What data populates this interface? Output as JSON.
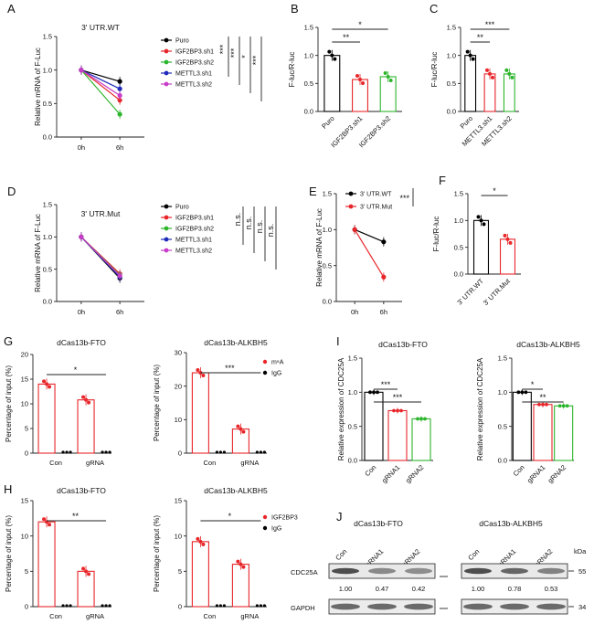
{
  "panels": {
    "A": {
      "letter": "A",
      "title": "3' UTR.WT",
      "ylabel": "Relative mRNA of F-Luc",
      "x": [
        "0h",
        "6h"
      ],
      "yticks": [
        "0.0",
        "0.5",
        "1.0",
        "1.5"
      ],
      "series": [
        {
          "name": "Puro",
          "color": "#000000",
          "values": [
            1.0,
            0.83
          ]
        },
        {
          "name": "IGF2BP3.sh1",
          "color": "#e8262a",
          "values": [
            1.0,
            0.55
          ]
        },
        {
          "name": "IGF2BP3.sh2",
          "color": "#2db52d",
          "values": [
            1.0,
            0.34
          ]
        },
        {
          "name": "METTL3.sh1",
          "color": "#1f2bb8",
          "values": [
            1.0,
            0.72
          ]
        },
        {
          "name": "METTL3.sh2",
          "color": "#c83cc8",
          "values": [
            1.0,
            0.62
          ]
        }
      ],
      "sig": [
        "***",
        "***",
        "*",
        "***"
      ]
    },
    "B": {
      "letter": "B",
      "ylabel": "F-luc/R-luc",
      "categories": [
        "Puro",
        "IGF2BP3.sh1",
        "IGF2BP3.sh2"
      ],
      "colors": [
        "#000000",
        "#e8262a",
        "#2db52d"
      ],
      "values": [
        1.0,
        0.57,
        0.62
      ],
      "yticks": [
        "0.0",
        "0.5",
        "1.0",
        "1.5"
      ],
      "sig": [
        "*",
        "**"
      ]
    },
    "C": {
      "letter": "C",
      "ylabel": "F-luc/R-luc",
      "categories": [
        "Puro",
        "METTL3.sh1",
        "METTL3.sh2"
      ],
      "colors": [
        "#000000",
        "#e8262a",
        "#2db52d"
      ],
      "values": [
        1.0,
        0.67,
        0.67
      ],
      "yticks": [
        "0.0",
        "0.5",
        "1.0",
        "1.5"
      ],
      "sig": [
        "***",
        "**"
      ]
    },
    "D": {
      "letter": "D",
      "title": "3' UTR.Mut",
      "ylabel": "Relative mRNA of F-Luc",
      "x": [
        "0h",
        "6h"
      ],
      "yticks": [
        "0.0",
        "0.5",
        "1.0",
        "1.5"
      ],
      "series": [
        {
          "name": "Puro",
          "color": "#000000",
          "values": [
            1.0,
            0.36
          ]
        },
        {
          "name": "IGF2BP3.sh1",
          "color": "#e8262a",
          "values": [
            1.0,
            0.43
          ]
        },
        {
          "name": "IGF2BP3.sh2",
          "color": "#2db52d",
          "values": [
            1.0,
            0.41
          ]
        },
        {
          "name": "METTL3.sh1",
          "color": "#1f2bb8",
          "values": [
            1.0,
            0.38
          ]
        },
        {
          "name": "METTL3.sh2",
          "color": "#c83cc8",
          "values": [
            1.0,
            0.4
          ]
        }
      ],
      "sig": [
        "n.s.",
        "n.s.",
        "n.s.",
        "n.s."
      ]
    },
    "E": {
      "letter": "E",
      "ylabel": "Relative mRNA of F-Luc",
      "x": [
        "0h",
        "6h"
      ],
      "yticks": [
        "0.0",
        "0.5",
        "1.0",
        "1.5"
      ],
      "series": [
        {
          "name": "3' UTR.WT",
          "color": "#000000",
          "values": [
            1.0,
            0.83
          ]
        },
        {
          "name": "3' UTR.Mut",
          "color": "#e8262a",
          "values": [
            1.0,
            0.34
          ]
        }
      ],
      "sig": [
        "***"
      ]
    },
    "F": {
      "letter": "F",
      "ylabel": "F-luc/R-luc",
      "categories": [
        "3' UTR.WT",
        "3' UTR.Mut"
      ],
      "colors": [
        "#000000",
        "#e8262a"
      ],
      "values": [
        1.0,
        0.65
      ],
      "yticks": [
        "0.0",
        "0.5",
        "1.0",
        "1.5"
      ],
      "sig": [
        "*"
      ]
    },
    "G": {
      "letter": "G",
      "ylabel": "Percentage of input (%)",
      "left": {
        "title": "dCas13b-FTO",
        "categories": [
          "Con",
          "gRNA"
        ],
        "values": [
          14.0,
          10.8
        ],
        "igg": [
          0.2,
          0.2
        ],
        "yticks": [
          "0",
          "5",
          "10",
          "15",
          "20"
        ],
        "sig": "*"
      },
      "right": {
        "title": "dCas13b-ALKBH5",
        "categories": [
          "Con",
          "gRNA"
        ],
        "values": [
          24.0,
          7.2
        ],
        "igg": [
          0.2,
          0.2
        ],
        "yticks": [
          "0",
          "10",
          "20",
          "30"
        ],
        "sig": "***",
        "legend": [
          "m⁶A",
          "IgG"
        ]
      }
    },
    "H": {
      "letter": "H",
      "ylabel": "Percentage of input (%)",
      "left": {
        "title": "dCas13b-FTO",
        "categories": [
          "Con",
          "gRNA"
        ],
        "values": [
          12.0,
          5.0
        ],
        "igg": [
          0.2,
          0.2
        ],
        "yticks": [
          "0",
          "5",
          "10",
          "15"
        ],
        "sig": "**"
      },
      "right": {
        "title": "dCas13b-ALKBH5",
        "categories": [
          "Con",
          "gRNA"
        ],
        "values": [
          9.2,
          6.0
        ],
        "igg": [
          0.2,
          0.2
        ],
        "yticks": [
          "0",
          "5",
          "10",
          "15"
        ],
        "sig": "*",
        "legend": [
          "IGF2BP3",
          "IgG"
        ]
      }
    },
    "I": {
      "letter": "I",
      "ylabel": "Relative expression of CDC25A",
      "left": {
        "title": "dCas13b-FTO",
        "categories": [
          "Con",
          "gRNA1",
          "gRNA2"
        ],
        "values": [
          1.0,
          0.73,
          0.61
        ],
        "sig": [
          "***",
          "***"
        ]
      },
      "right": {
        "title": "dCas13b-ALKBH5",
        "categories": [
          "Con",
          "gRNA1",
          "gRNA2"
        ],
        "values": [
          1.0,
          0.82,
          0.8
        ],
        "sig": [
          "*",
          "**"
        ]
      },
      "yticks": [
        "0.0",
        "0.5",
        "1.0",
        "1.5"
      ],
      "colors": [
        "#000000",
        "#e8262a",
        "#2db52d"
      ]
    },
    "J": {
      "letter": "J",
      "left": {
        "title": "dCas13b-FTO",
        "lanes": [
          "Con",
          "gRNA1",
          "gRNA2"
        ],
        "ratios": [
          "1.00",
          "0.47",
          "0.42"
        ]
      },
      "right": {
        "title": "dCas13b-ALKBH5",
        "lanes": [
          "Con",
          "gRNA1",
          "gRNA2"
        ],
        "ratios": [
          "1.00",
          "0.78",
          "0.53"
        ]
      },
      "rows": [
        "CDC25A",
        "GAPDH"
      ],
      "kda_label": "kDa",
      "kda": [
        "55",
        "34"
      ]
    }
  }
}
